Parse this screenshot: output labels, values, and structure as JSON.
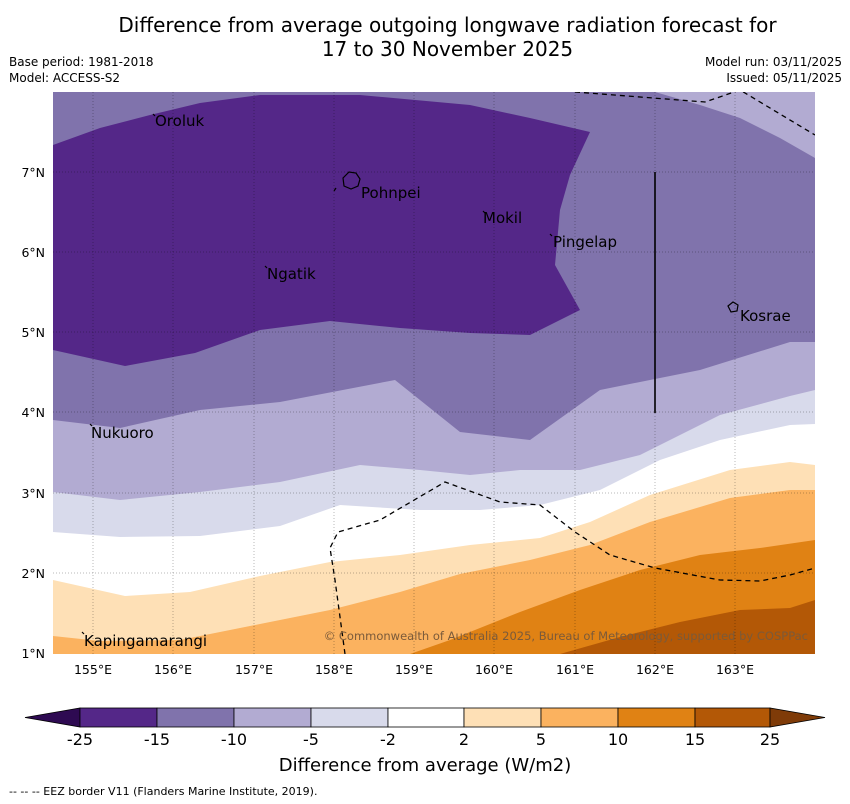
{
  "title": {
    "line1": "Difference from average outgoing longwave radiation forecast for",
    "line2": "17 to 30 November 2025"
  },
  "meta": {
    "base_period": "Base period: 1981-2018",
    "model": "Model: ACCESS-S2",
    "model_run": "Model run: 03/11/2025",
    "issued": "Issued: 05/11/2025"
  },
  "map": {
    "lat_labels": [
      "7°N",
      "6°N",
      "5°N",
      "4°N",
      "3°N",
      "2°N",
      "1°N"
    ],
    "lon_labels": [
      "155°E",
      "156°E",
      "157°E",
      "158°E",
      "159°E",
      "160°E",
      "161°E",
      "162°E",
      "163°E"
    ],
    "places": {
      "oroluk": "Oroluk",
      "pohnpei": "Pohnpei",
      "mokil": "Mokil",
      "pingelap": "Pingelap",
      "ngatik": "Ngatik",
      "kosrae": "Kosrae",
      "nukuoro": "Nukuoro",
      "kapingamarangi": "Kapingamarangi"
    },
    "copyright": "© Commonwealth of Australia 2025, Bureau of Meteorology, supported by COSPPac",
    "colors": {
      "lt_m25": "#2e0a52",
      "m25_m15": "#542788",
      "m15_m10": "#8073ac",
      "m10_m5": "#b2abd2",
      "m5_m2": "#d8daeb",
      "m2_2": "#ffffff",
      "p2_5": "#fee0b6",
      "p5_10": "#fbb25f",
      "p10_15": "#e08214",
      "p15_25": "#b35806",
      "gt_25": "#7f3b08"
    }
  },
  "colorbar": {
    "ticks": [
      "-25",
      "-15",
      "-10",
      "-5",
      "-2",
      "2",
      "5",
      "10",
      "15",
      "25"
    ],
    "label": "Difference from average (W/m2)"
  },
  "footer": "--  --  -- EEZ border V11 (Flanders Marine Institute, 2019)."
}
